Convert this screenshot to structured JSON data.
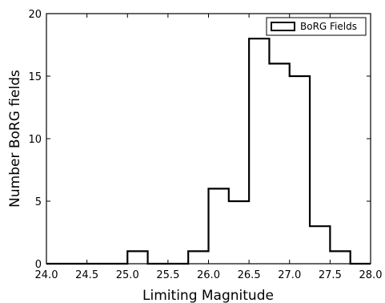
{
  "chart_data": {
    "type": "bar",
    "style": "step-histogram",
    "bin_edges": [
      24.0,
      24.25,
      24.5,
      24.75,
      25.0,
      25.25,
      25.5,
      25.75,
      26.0,
      26.25,
      26.5,
      26.75,
      27.0,
      27.25,
      27.5,
      27.75,
      28.0
    ],
    "values": [
      0,
      0,
      0,
      0,
      1,
      0,
      0,
      1,
      6,
      5,
      18,
      16,
      15,
      3,
      1,
      0
    ],
    "xlabel": "Limiting Magnitude",
    "ylabel": "Number BoRG fields",
    "xlim": [
      24.0,
      28.0
    ],
    "ylim": [
      0,
      20
    ],
    "xticks": [
      "24.0",
      "24.5",
      "25.0",
      "25.5",
      "26.0",
      "26.5",
      "27.0",
      "27.5",
      "28.0"
    ],
    "yticks": [
      "0",
      "5",
      "10",
      "15",
      "20"
    ],
    "grid": false,
    "legend": {
      "entries": [
        "BoRG Fields"
      ],
      "position": "top-right"
    },
    "colors": {
      "line": "#000000",
      "background": "#ffffff"
    }
  }
}
